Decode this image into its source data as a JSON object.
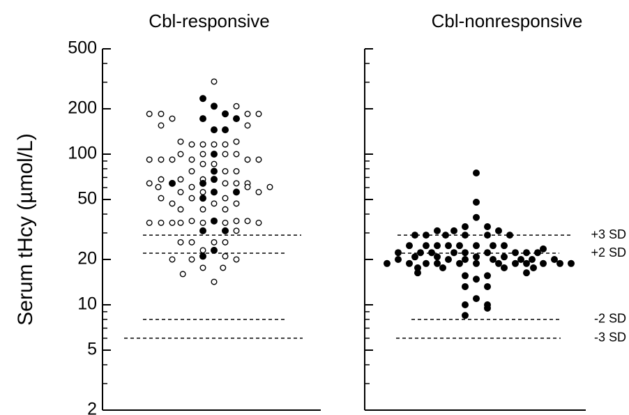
{
  "chart_data": [
    {
      "type": "dotplot",
      "title": "Cbl-responsive",
      "y_label": "Serum tHcy (µmol/L)",
      "log_y": true,
      "ylim": [
        2,
        500
      ],
      "yticks": [
        2,
        5,
        10,
        20,
        50,
        100,
        200,
        500
      ],
      "yminor_ticks": [
        3,
        4,
        6,
        7,
        8,
        9,
        30,
        40,
        60,
        70,
        80,
        90,
        300,
        400
      ],
      "xlim": [
        -9,
        9
      ],
      "hlines": [
        {
          "value": 29
        },
        {
          "value": 22
        },
        {
          "value": 8
        },
        {
          "value": 6
        }
      ],
      "series": [
        {
          "marker": "open",
          "color": "#000000",
          "x": [
            0,
            2,
            -5.8,
            -4.75,
            3,
            4,
            -3.75,
            -4.75,
            3,
            -3,
            2,
            -2,
            -1,
            0,
            1,
            -3,
            -1,
            1,
            2,
            -5.8,
            -4.75,
            -3.75,
            -2,
            3,
            4,
            -1,
            0,
            -2,
            1,
            2,
            -4.75,
            -3,
            -1,
            -5.8,
            1,
            2,
            3,
            -5,
            -2,
            3,
            5,
            -3,
            -1,
            4,
            -4.75,
            -2,
            1,
            -3.75,
            0,
            2,
            -3,
            -1,
            1,
            -2,
            2,
            3,
            -5.8,
            -4.75,
            -3.75,
            -3,
            -1,
            1,
            4,
            2,
            -3,
            -2,
            0,
            1,
            -1,
            1,
            -3.75,
            -2,
            2,
            -1,
            0.8,
            -2.8,
            0
          ],
          "values": [
            303,
            208,
            185,
            185,
            185,
            185,
            172,
            155,
            155,
            121,
            121,
            116,
            116,
            116,
            116,
            100,
            100,
            100,
            100,
            92,
            92,
            92,
            92,
            92,
            92,
            86,
            86,
            77,
            77,
            77,
            68,
            68,
            68,
            64,
            64,
            64,
            64,
            60.5,
            60.5,
            60.5,
            60.5,
            56,
            56,
            56,
            51,
            51,
            51,
            47,
            47,
            47,
            43,
            43,
            43,
            36,
            36,
            36,
            35,
            35,
            35,
            35,
            35,
            35,
            35,
            31,
            26,
            26,
            26,
            26,
            23,
            21,
            20,
            20,
            20,
            17.6,
            17.6,
            16,
            14.2
          ]
        },
        {
          "marker": "filled",
          "color": "#000000",
          "x": [
            -1,
            0,
            1,
            -1,
            2,
            0,
            1,
            0,
            0,
            0,
            -3.75,
            -1,
            0,
            2,
            -1,
            0,
            -1,
            1,
            0,
            -1
          ],
          "values": [
            234,
            208,
            185,
            172,
            172,
            145,
            145,
            100,
            77,
            68,
            64,
            64,
            56,
            56,
            51,
            36,
            31,
            31,
            23,
            21
          ]
        }
      ]
    },
    {
      "type": "dotplot",
      "title": "Cbl-nonresponsive",
      "log_y": true,
      "ylim": [
        2,
        500
      ],
      "yticks": [
        2,
        5,
        10,
        20,
        50,
        100,
        200,
        500
      ],
      "yminor_ticks": [
        3,
        4,
        6,
        7,
        8,
        9,
        30,
        40,
        60,
        70,
        80,
        90,
        300,
        400
      ],
      "xlim": [
        -9,
        9
      ],
      "hlines": [
        {
          "value": 29,
          "label": "+3 SD"
        },
        {
          "value": 22,
          "label": "+2 SD"
        },
        {
          "value": 8,
          "label": "-2 SD"
        },
        {
          "value": 6,
          "label": "-3 SD"
        }
      ],
      "series": [
        {
          "marker": "filled",
          "color": "#000000",
          "x": [
            0,
            0,
            0,
            -1,
            1,
            -3.5,
            -2,
            2,
            -5.5,
            -4.5,
            -2.75,
            -1,
            1,
            3,
            -6,
            -4.5,
            -3.5,
            -2.5,
            -1.5,
            0,
            1.5,
            2.5,
            6,
            -7,
            -5,
            -4,
            -2,
            -1,
            1,
            3.5,
            4.5,
            5.5,
            -5.5,
            -3.5,
            0,
            2.5,
            -7,
            -2.5,
            -1,
            1.5,
            4,
            5,
            7,
            -8,
            -6,
            -4.5,
            -3.5,
            -1.5,
            0,
            2,
            3.5,
            4.5,
            6,
            7.5,
            8.5,
            -5.25,
            -3,
            2.5,
            5.125,
            -5.25,
            4.5,
            -1,
            1,
            0,
            -1,
            1,
            0,
            -1,
            1,
            1,
            -1
          ],
          "values": [
            75,
            48,
            38,
            33,
            33,
            31,
            31,
            31,
            29,
            29,
            29,
            29,
            29,
            29,
            24.7,
            24.7,
            24.7,
            24.7,
            24.7,
            24.7,
            24.7,
            24.7,
            23.5,
            22.2,
            22.2,
            22.2,
            22.2,
            22.2,
            22.2,
            22.2,
            22.2,
            22.2,
            20.8,
            20.8,
            20.8,
            20.8,
            20,
            20,
            20,
            20,
            20,
            20,
            20,
            18.8,
            18.8,
            18.8,
            18.8,
            18.8,
            18.8,
            18.8,
            18.8,
            18.8,
            18.8,
            18.8,
            18.8,
            17.6,
            17.6,
            17.6,
            17.6,
            16.3,
            16.3,
            15.6,
            15.6,
            14.8,
            13.2,
            13.2,
            11,
            10,
            10,
            9.5,
            8.5
          ]
        }
      ]
    }
  ]
}
